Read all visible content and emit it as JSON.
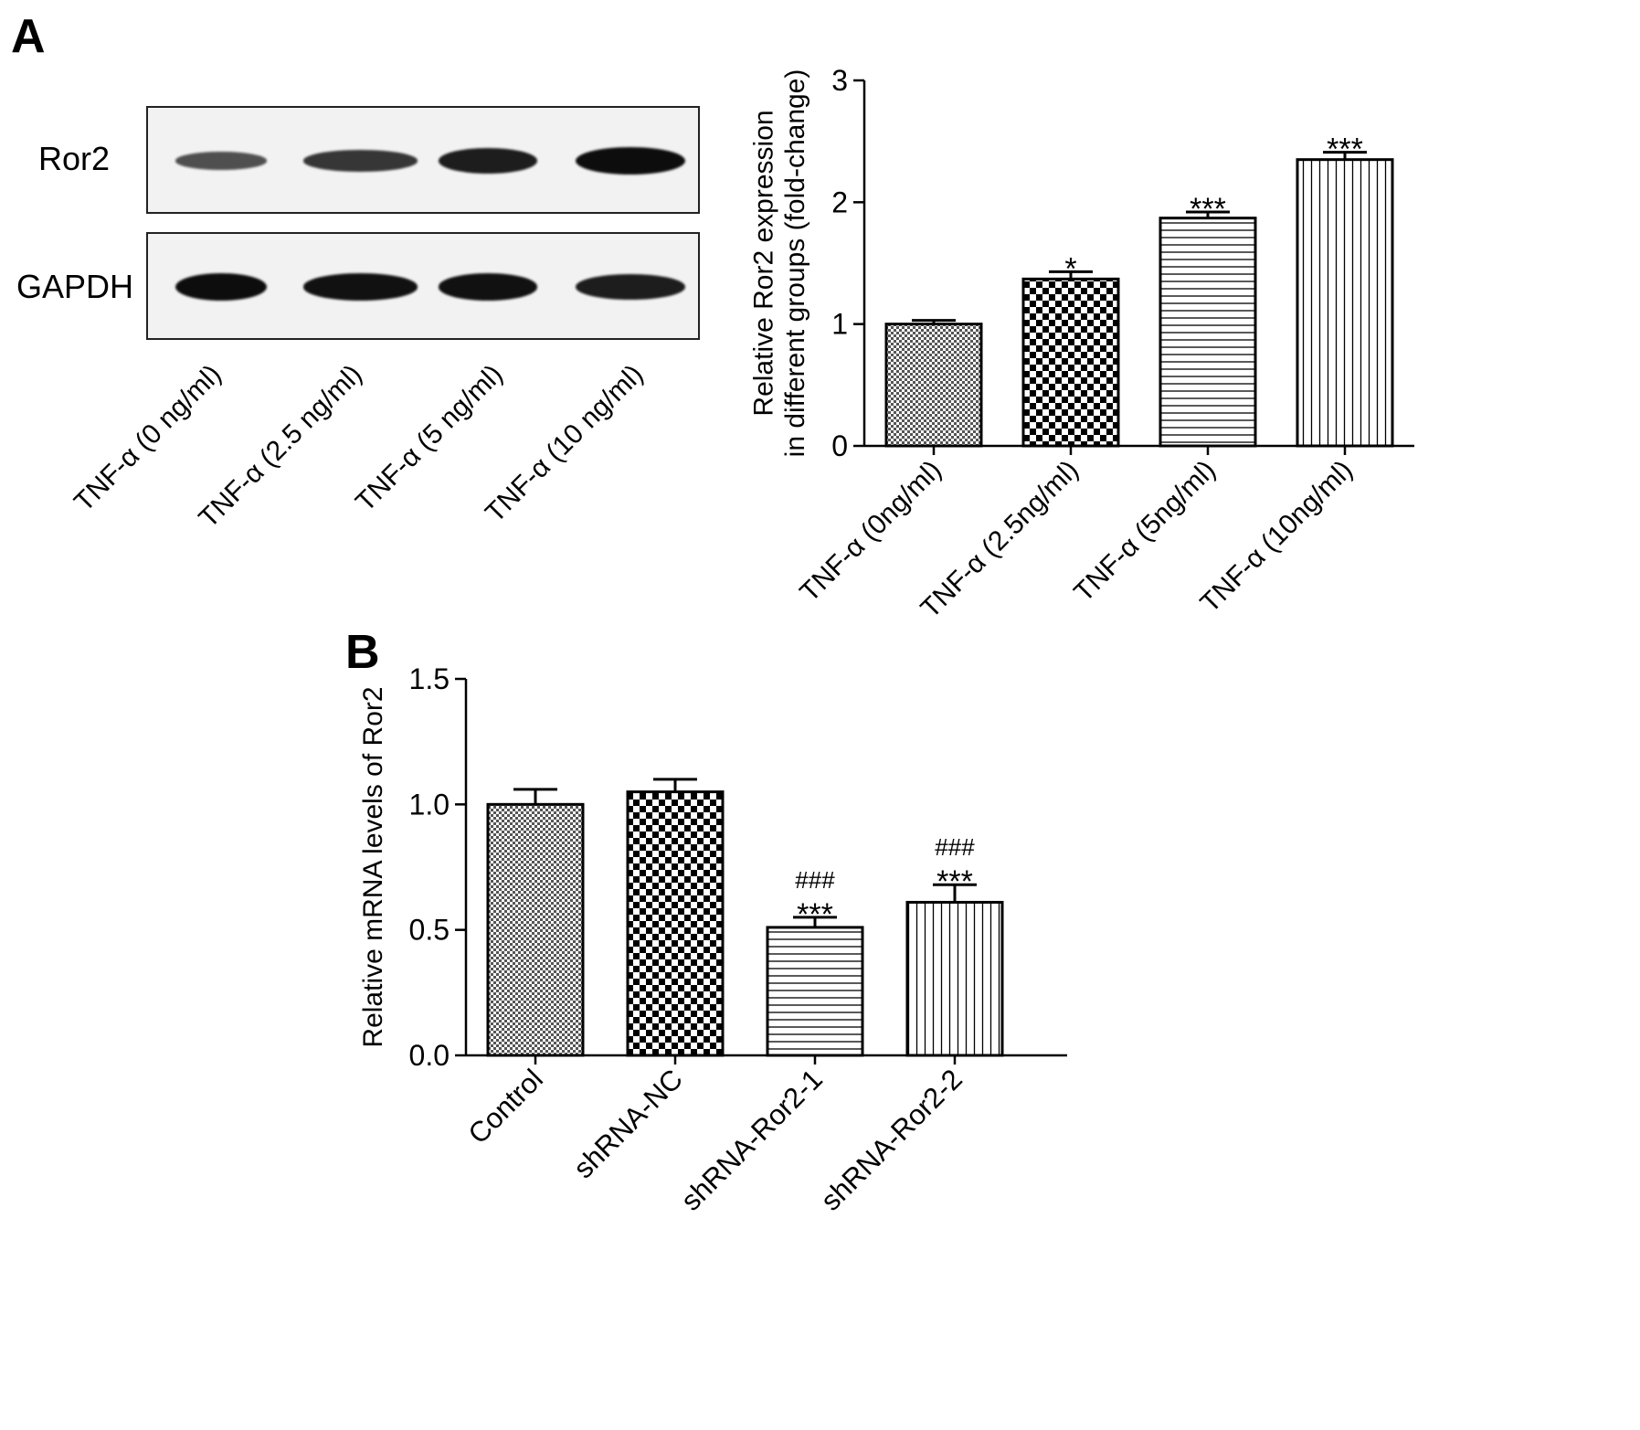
{
  "panels": {
    "a_letter": "A",
    "b_letter": "B"
  },
  "blot": {
    "rows": [
      "Ror2",
      "GAPDH"
    ],
    "lanes": [
      "TNF-α (0 ng/ml)",
      "TNF-α (2.5 ng/ml)",
      "TNF-α (5 ng/ml)",
      "TNF-α (10 ng/ml)"
    ],
    "ror2_band_intensity": [
      0.35,
      0.6,
      0.85,
      1.0
    ],
    "gapdh_band_intensity": [
      1.0,
      0.95,
      0.95,
      0.85
    ]
  },
  "chart_data": [
    {
      "type": "bar",
      "panel": "A",
      "ylabel": "Relative Ror2 expression\nin different groups (fold-change)",
      "xlabel": "",
      "ylim": [
        0,
        3
      ],
      "yticks": [
        "0",
        "1",
        "2",
        "3"
      ],
      "yticks_values": [
        0,
        1,
        2,
        3
      ],
      "categories": [
        "TNF-α (0ng/ml)",
        "TNF-α (2.5ng/ml)",
        "TNF-α (5ng/ml)",
        "TNF-α (10ng/ml)"
      ],
      "values": [
        1.0,
        1.37,
        1.87,
        2.35
      ],
      "errors": [
        0.03,
        0.06,
        0.05,
        0.06
      ],
      "annotations": [
        [],
        [
          "*"
        ],
        [
          "***"
        ],
        [
          "***"
        ]
      ],
      "patterns": [
        "fine-check",
        "checker",
        "horizontal",
        "vertical"
      ]
    },
    {
      "type": "bar",
      "panel": "B",
      "ylabel": "Relative mRNA levels of Ror2",
      "xlabel": "",
      "ylim": [
        0,
        1.5
      ],
      "yticks": [
        "0.0",
        "0.5",
        "1.0",
        "1.5"
      ],
      "yticks_values": [
        0,
        0.5,
        1.0,
        1.5
      ],
      "categories": [
        "Control",
        "shRNA-NC",
        "shRNA-Ror2-1",
        "shRNA-Ror2-2"
      ],
      "values": [
        1.0,
        1.05,
        0.51,
        0.61
      ],
      "errors": [
        0.06,
        0.05,
        0.04,
        0.07
      ],
      "annotations": [
        [],
        [],
        [
          "###",
          "***"
        ],
        [
          "###",
          "***"
        ]
      ],
      "patterns": [
        "fine-check",
        "checker",
        "horizontal",
        "vertical"
      ]
    }
  ]
}
